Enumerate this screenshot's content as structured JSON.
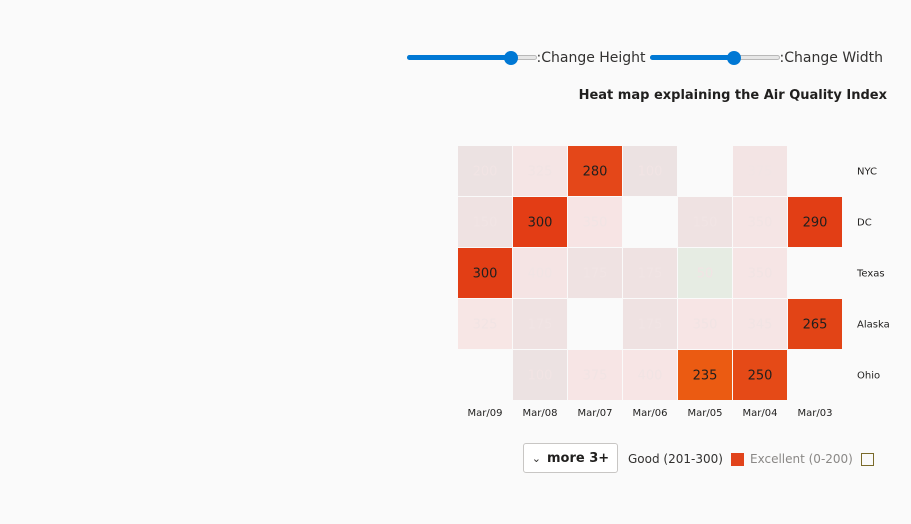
{
  "controls": {
    "height_label": ":Change Height",
    "width_label": ":Change Width",
    "height_value": 0.8,
    "width_value": 0.65
  },
  "legend": {
    "more_label": "more 3+",
    "items": [
      {
        "label": "Good (201-300)",
        "color": "#e1431b",
        "active": true
      },
      {
        "label": "Excellent (0-200)",
        "color": "#fafafa",
        "border": "#7a6a2a",
        "active": false
      }
    ]
  },
  "chart_data": {
    "type": "heatmap",
    "title": "Heat map explaining the Air Quality Index",
    "x_categories": [
      "Mar/09",
      "Mar/08",
      "Mar/07",
      "Mar/06",
      "Mar/05",
      "Mar/04",
      "Mar/03"
    ],
    "y_categories": [
      "NYC",
      "DC",
      "Texas",
      "Alaska",
      "Ohio"
    ],
    "highlighted_range": [
      201,
      300
    ],
    "cells": [
      [
        {
          "v": "200",
          "fill": "#ece2e2"
        },
        {
          "v": "325",
          "fill": "#f5e5e5"
        },
        {
          "v": "280",
          "fill": "#e44719",
          "hl": true
        },
        {
          "v": "100",
          "fill": "#ece2e2"
        },
        {
          "v": "",
          "fill": "none"
        },
        {
          "v": "375",
          "fill": "#f3e4e4"
        },
        {
          "v": "",
          "fill": "none"
        }
      ],
      [
        {
          "v": "150",
          "fill": "#efe2e2"
        },
        {
          "v": "300",
          "fill": "#e33d15",
          "hl": true
        },
        {
          "v": "350",
          "fill": "#f7e4e4"
        },
        {
          "v": "",
          "fill": "none"
        },
        {
          "v": "150",
          "fill": "#efe2e2"
        },
        {
          "v": "350",
          "fill": "#f5e5e5"
        },
        {
          "v": "290",
          "fill": "#e23e15",
          "hl": true
        }
      ],
      [
        {
          "v": "300",
          "fill": "#e23e15",
          "hl": true
        },
        {
          "v": "400",
          "fill": "#f5e4e4"
        },
        {
          "v": "175",
          "fill": "#efe2e2"
        },
        {
          "v": "175",
          "fill": "#efe2e2"
        },
        {
          "v": "50",
          "fill": "#e6ece3"
        },
        {
          "v": "350",
          "fill": "#f6e5e5"
        },
        {
          "v": "",
          "fill": "none"
        }
      ],
      [
        {
          "v": "325",
          "fill": "#f7e6e5"
        },
        {
          "v": "175",
          "fill": "#efe2e2"
        },
        {
          "v": "",
          "fill": "none"
        },
        {
          "v": "175",
          "fill": "#efe2e2"
        },
        {
          "v": "350",
          "fill": "#f7e5e5"
        },
        {
          "v": "345",
          "fill": "#f6e5e5"
        },
        {
          "v": "265",
          "fill": "#e24416",
          "hl": true
        }
      ],
      [
        {
          "v": "",
          "fill": "none"
        },
        {
          "v": "100",
          "fill": "#ece2e2"
        },
        {
          "v": "375",
          "fill": "#f7e5e5"
        },
        {
          "v": "400",
          "fill": "#f7e5e5"
        },
        {
          "v": "235",
          "fill": "#eb5b12",
          "hl": true
        },
        {
          "v": "250",
          "fill": "#e54a17",
          "hl": true
        },
        {
          "v": "",
          "fill": "none"
        }
      ]
    ]
  }
}
